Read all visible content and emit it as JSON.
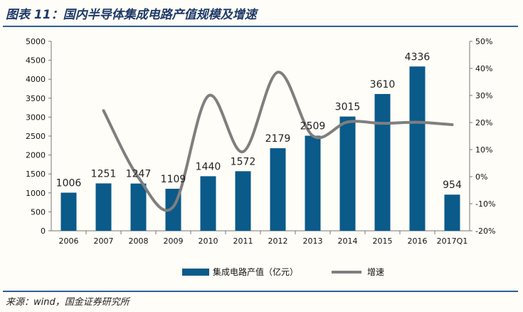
{
  "header": {
    "title": "图表 11：国内半导体集成电路产值规模及增速"
  },
  "footer": {
    "source": "来源：wind，国金证券研究所"
  },
  "colors": {
    "bar": "#0a5a8a",
    "line": "#7f7f7f",
    "rule": "#2d5f9a"
  },
  "chart_data": {
    "type": "bar",
    "categories": [
      "2006",
      "2007",
      "2008",
      "2009",
      "2010",
      "2011",
      "2012",
      "2013",
      "2014",
      "2015",
      "2016",
      "2017Q1"
    ],
    "series": [
      {
        "name": "集成电路产值（亿元）",
        "type": "bar",
        "axis": "left",
        "values": [
          1006,
          1251,
          1247,
          1109,
          1440,
          1572,
          2179,
          2509,
          3015,
          3610,
          4336,
          954
        ]
      },
      {
        "name": "增速",
        "type": "line",
        "axis": "right",
        "values": [
          null,
          24.4,
          -0.3,
          -11.1,
          29.8,
          9.2,
          38.6,
          15.1,
          20.2,
          19.7,
          20.1,
          19.2
        ]
      }
    ],
    "data_labels": [
      "1006",
      "1251",
      "1247",
      "1109",
      "1440",
      "1572",
      "2179",
      "2509",
      "3015",
      "3610",
      "4336",
      "954"
    ],
    "y_left": {
      "ylim": [
        0,
        5000
      ],
      "ticks": [
        0,
        500,
        1000,
        1500,
        2000,
        2500,
        3000,
        3500,
        4000,
        4500,
        5000
      ],
      "tick_labels": [
        "0",
        "500",
        "1000",
        "1500",
        "2000",
        "2500",
        "3000",
        "3500",
        "4000",
        "4500",
        "5000"
      ]
    },
    "y_right": {
      "ylim": [
        -20,
        50
      ],
      "ticks": [
        -20,
        -10,
        0,
        10,
        20,
        30,
        40,
        50
      ],
      "tick_labels": [
        "-20%",
        "-10%",
        "0%",
        "10%",
        "20%",
        "30%",
        "40%",
        "50%"
      ]
    },
    "legend": {
      "placement": "bottom",
      "items": [
        "集成电路产值（亿元）",
        "增速"
      ]
    },
    "grid": false
  }
}
